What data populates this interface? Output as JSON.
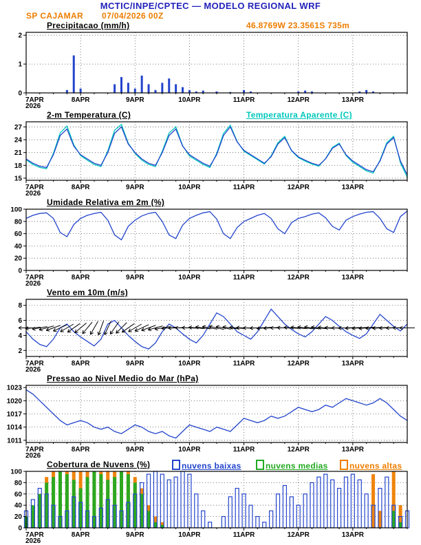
{
  "header": {
    "title": "MCTIC/INPE/CPTEC — MODELO REGIONAL WRF",
    "station": "SP CAJAMAR",
    "run_datetime": "07/04/2026 00Z"
  },
  "colors": {
    "title_navy": "#2222bb",
    "orange": "#ee7d00",
    "line_blue": "#2244cc",
    "cyan": "#00c8bc",
    "green": "#22aa22",
    "barb_black": "#000000"
  },
  "x_axis": {
    "lim": [
      0,
      168
    ],
    "step_hours": 3,
    "ticks": [
      {
        "h": 0,
        "label": "7APR",
        "sublabel": "2026"
      },
      {
        "h": 24,
        "label": "8APR"
      },
      {
        "h": 48,
        "label": "9APR"
      },
      {
        "h": 72,
        "label": "10APR"
      },
      {
        "h": 96,
        "label": "11APR"
      },
      {
        "h": 120,
        "label": "12APR"
      },
      {
        "h": 144,
        "label": "13APR"
      }
    ]
  },
  "chart_data": [
    {
      "id": "precip",
      "type": "bar",
      "title": "Precipitacao (mm/h)",
      "annotation": "46.8769W 23.3561S 735m",
      "ylim": [
        0,
        2.1
      ],
      "yticks": [
        0,
        1,
        2
      ],
      "bar_color": "#2244cc",
      "values": [
        0,
        0,
        0,
        0,
        0,
        0,
        0.1,
        1.3,
        0.15,
        0,
        0,
        0,
        0,
        0.3,
        0.55,
        0.35,
        0.15,
        0.6,
        0.3,
        0.1,
        0.35,
        0.5,
        0.3,
        0.2,
        0.1,
        0.05,
        0.08,
        0,
        0.05,
        0,
        0.03,
        0,
        0.1,
        0.05,
        0,
        0,
        0,
        0,
        0,
        0,
        0.05,
        0.08,
        0.05,
        0,
        0,
        0,
        0,
        0,
        0,
        0.05,
        0.1,
        0.05,
        0,
        0,
        0,
        0,
        0
      ]
    },
    {
      "id": "temp2m",
      "type": "line",
      "title": "2-m Temperatura (C)",
      "legend_label": "Temperatura Aparente (C)",
      "ylim": [
        14.5,
        28.2
      ],
      "yticks": [
        15,
        18,
        21,
        24,
        27
      ],
      "series": [
        {
          "name": "2-m Temperatura (C)",
          "color": "#2244cc",
          "values": [
            19.5,
            18.5,
            17.8,
            17.5,
            20.5,
            25,
            26.5,
            22.5,
            20.5,
            19.5,
            18.5,
            18,
            21,
            25.5,
            27,
            23,
            21,
            19.5,
            18.5,
            18,
            21,
            25,
            26.5,
            22.5,
            20.5,
            19.5,
            18.5,
            17.8,
            20.5,
            25,
            27,
            23.5,
            21.5,
            20.5,
            19.5,
            18.5,
            20,
            23,
            24.5,
            21.5,
            20,
            19.2,
            18.5,
            18,
            19.5,
            22,
            23,
            20.5,
            19,
            18,
            17,
            16.5,
            19,
            23,
            24.5,
            19,
            15.8
          ]
        },
        {
          "name": "Temperatura Aparente (C)",
          "color": "#00c8bc",
          "values": [
            19.3,
            18.2,
            17.5,
            17.2,
            20.8,
            25.6,
            27.2,
            22.8,
            20.3,
            19.2,
            18.2,
            17.7,
            21.4,
            26.2,
            27.6,
            23.2,
            20.8,
            19.2,
            18.2,
            17.7,
            21.3,
            25.6,
            27,
            22.6,
            20.2,
            19.2,
            18.2,
            17.5,
            20.8,
            25.5,
            27.4,
            23.6,
            21.3,
            20.3,
            19.3,
            18.3,
            20.2,
            23.3,
            24.8,
            21.4,
            19.8,
            19,
            18.3,
            17.8,
            19.6,
            22.2,
            23.2,
            20.3,
            18.7,
            17.7,
            16.7,
            16.2,
            19.2,
            23.3,
            24.8,
            18.6,
            15.2
          ]
        }
      ]
    },
    {
      "id": "rh2m",
      "type": "line",
      "title": "Umidade Relativa em 2m (%)",
      "ylim": [
        0,
        100
      ],
      "yticks": [
        0,
        20,
        40,
        60,
        80,
        100
      ],
      "series": [
        {
          "name": "Umidade Relativa",
          "color": "#2244cc",
          "values": [
            85,
            90,
            93,
            94,
            85,
            62,
            55,
            75,
            85,
            90,
            93,
            95,
            82,
            58,
            50,
            72,
            82,
            89,
            93,
            95,
            80,
            58,
            52,
            74,
            85,
            90,
            94,
            96,
            84,
            60,
            52,
            70,
            80,
            85,
            90,
            93,
            85,
            68,
            60,
            78,
            85,
            88,
            92,
            94,
            86,
            72,
            66,
            82,
            88,
            92,
            95,
            96,
            85,
            68,
            62,
            88,
            97
          ]
        }
      ]
    },
    {
      "id": "wind10m",
      "type": "wind",
      "title": "Vento em 10m (m/s)",
      "ylim": [
        1.2,
        8.8
      ],
      "yticks": [
        2,
        4,
        6,
        8
      ],
      "series": [
        {
          "name": "Velocidade do Vento",
          "color": "#2244cc",
          "values": [
            4.5,
            3.5,
            2.8,
            2.5,
            3.5,
            5,
            5.5,
            4.5,
            3.8,
            3.2,
            2.6,
            3.5,
            5.5,
            6,
            5,
            4,
            3.2,
            2.5,
            2.2,
            3,
            4.5,
            5.5,
            5,
            4.2,
            3.5,
            3,
            4,
            5.5,
            7,
            6.5,
            5.5,
            4.5,
            4,
            3.5,
            4.5,
            6,
            7.5,
            6.5,
            5.5,
            4.8,
            4.2,
            3.8,
            4.5,
            5.5,
            6.5,
            6,
            5.2,
            4.5,
            4,
            3.6,
            4.2,
            5.5,
            6.8,
            6,
            5.2,
            4.6,
            5.5
          ]
        }
      ],
      "barbs": {
        "y_anchor": 5,
        "color": "#000000",
        "directions_deg": [
          180,
          185,
          190,
          195,
          200,
          205,
          210,
          215,
          220,
          230,
          240,
          250,
          245,
          235,
          225,
          215,
          210,
          205,
          200,
          195,
          190,
          185,
          182,
          180,
          178,
          175,
          172,
          170,
          168,
          170,
          172,
          175,
          178,
          180,
          182,
          185,
          183,
          180,
          178,
          176,
          175,
          173,
          172,
          174,
          176,
          178,
          180,
          182,
          183,
          184,
          185,
          184,
          183,
          182,
          181,
          180,
          180
        ]
      }
    },
    {
      "id": "slp",
      "type": "line",
      "title": "Pressao ao Nivel Medio do Mar (hPa)",
      "ylim": [
        1010.5,
        1023.5
      ],
      "yticks": [
        1011,
        1014,
        1017,
        1020,
        1023
      ],
      "series": [
        {
          "name": "Pressao ao Nivel Medio do Mar",
          "color": "#2244cc",
          "values": [
            1022.5,
            1021.5,
            1020,
            1018.5,
            1017,
            1015.5,
            1014.5,
            1015,
            1015.5,
            1015,
            1014,
            1013.5,
            1014,
            1013,
            1012.5,
            1013.5,
            1014.5,
            1014,
            1013,
            1012.5,
            1013,
            1012,
            1011.5,
            1013,
            1014.5,
            1014,
            1013.5,
            1013,
            1014,
            1013.5,
            1013,
            1014.5,
            1016,
            1015.5,
            1015,
            1015.5,
            1016.5,
            1016,
            1016.5,
            1017.5,
            1018.5,
            1018,
            1017.5,
            1018,
            1019,
            1018.5,
            1019.5,
            1020.5,
            1020,
            1019.5,
            1019,
            1019.5,
            1020.5,
            1019.5,
            1018,
            1016.5,
            1015.5
          ]
        }
      ]
    },
    {
      "id": "clouds",
      "type": "cloudbars",
      "title": "Cobertura de Nuvens (%)",
      "ylim": [
        0,
        100
      ],
      "yticks": [
        0,
        20,
        40,
        60,
        80,
        100
      ],
      "legend": [
        {
          "label": "nuvens baixas",
          "color": "#2244cc"
        },
        {
          "label": "nuvens medias",
          "color": "#22aa22"
        },
        {
          "label": "nuvens altas",
          "color": "#ee7d00"
        }
      ],
      "series": [
        {
          "name": "nuvens altas",
          "color": "#ee7d00",
          "fill": true,
          "values": [
            10,
            30,
            60,
            90,
            100,
            100,
            100,
            100,
            100,
            100,
            100,
            100,
            100,
            100,
            100,
            100,
            90,
            70,
            40,
            20,
            10,
            0,
            0,
            0,
            0,
            0,
            0,
            0,
            0,
            0,
            0,
            0,
            0,
            0,
            0,
            0,
            0,
            0,
            0,
            0,
            0,
            0,
            0,
            0,
            0,
            0,
            0,
            0,
            0,
            0,
            0,
            95,
            30,
            0,
            100,
            40,
            0
          ]
        },
        {
          "name": "nuvens medias",
          "color": "#22aa22",
          "fill": true,
          "values": [
            20,
            40,
            60,
            80,
            90,
            100,
            95,
            85,
            70,
            90,
            100,
            95,
            85,
            90,
            100,
            95,
            80,
            60,
            30,
            10,
            5,
            0,
            0,
            0,
            0,
            0,
            0,
            0,
            0,
            0,
            0,
            0,
            0,
            0,
            0,
            0,
            0,
            0,
            0,
            0,
            0,
            0,
            0,
            0,
            0,
            0,
            0,
            0,
            0,
            0,
            0,
            0,
            0,
            0,
            30,
            10,
            0
          ]
        },
        {
          "name": "nuvens baixas",
          "color": "#2244cc",
          "fill": false,
          "values": [
            30,
            50,
            70,
            60,
            40,
            20,
            30,
            55,
            45,
            30,
            20,
            35,
            50,
            40,
            30,
            45,
            60,
            80,
            95,
            100,
            95,
            85,
            90,
            100,
            95,
            60,
            30,
            10,
            0,
            20,
            55,
            70,
            60,
            40,
            20,
            10,
            30,
            60,
            75,
            55,
            40,
            60,
            80,
            90,
            95,
            85,
            70,
            90,
            95,
            85,
            60,
            40,
            70,
            90,
            40,
            20,
            30
          ]
        }
      ]
    }
  ]
}
